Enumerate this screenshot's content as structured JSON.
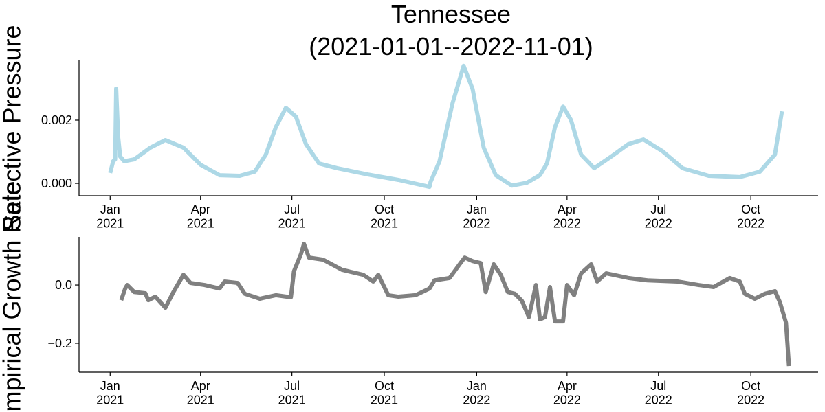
{
  "chart_data": [
    {
      "type": "line",
      "title": "Tennessee",
      "subtitle": "(2021-01-01--2022-11-01)",
      "y_label": "Selective Pressure",
      "x": [
        "2021-01-01",
        "2021-01-04",
        "2021-01-06",
        "2021-01-07",
        "2021-01-09",
        "2021-01-11",
        "2021-01-15",
        "2021-01-25",
        "2021-02-10",
        "2021-02-25",
        "2021-03-15",
        "2021-04-01",
        "2021-04-20",
        "2021-05-10",
        "2021-05-25",
        "2021-06-05",
        "2021-06-15",
        "2021-06-25",
        "2021-07-05",
        "2021-07-15",
        "2021-07-28",
        "2021-08-15",
        "2021-09-15",
        "2021-10-15",
        "2021-11-15",
        "2021-11-16",
        "2021-11-25",
        "2021-12-08",
        "2021-12-19",
        "2021-12-28",
        "2022-01-08",
        "2022-01-20",
        "2022-02-05",
        "2022-02-20",
        "2022-03-05",
        "2022-03-12",
        "2022-03-20",
        "2022-03-28",
        "2022-04-05",
        "2022-04-15",
        "2022-04-28",
        "2022-05-15",
        "2022-06-01",
        "2022-06-16",
        "2022-07-05",
        "2022-07-25",
        "2022-08-20",
        "2022-09-20",
        "2022-10-10",
        "2022-10-25",
        "2022-11-01"
      ],
      "series": [
        {
          "color": "#add8e6",
          "values": [
            0.00033,
            0.0007,
            0.00076,
            0.003,
            0.00146,
            0.00085,
            0.0007,
            0.00076,
            0.00113,
            0.00137,
            0.00113,
            0.00059,
            0.00026,
            0.00024,
            0.00037,
            0.00091,
            0.00178,
            0.00239,
            0.00211,
            0.00124,
            0.00063,
            0.00048,
            0.00028,
            0.00011,
            -0.00011,
            4e-05,
            0.0007,
            0.00254,
            0.00372,
            0.00298,
            0.00113,
            0.00026,
            -7e-05,
            2e-05,
            0.00026,
            0.00063,
            0.00178,
            0.00243,
            0.002,
            0.00091,
            0.00048,
            0.00085,
            0.00124,
            0.00139,
            0.00102,
            0.00048,
            0.00024,
            0.0002,
            0.00037,
            0.00091,
            0.00228
          ]
        }
      ],
      "xlim": [
        "2020-12-01",
        "2022-12-07"
      ],
      "xticks": [
        {
          "value": "2021-01-01",
          "label": "Jan\n2021"
        },
        {
          "value": "2021-04-01",
          "label": "Apr\n2021"
        },
        {
          "value": "2021-07-01",
          "label": "Jul\n2021"
        },
        {
          "value": "2021-10-01",
          "label": "Oct\n2021"
        },
        {
          "value": "2022-01-01",
          "label": "Jan\n2022"
        },
        {
          "value": "2022-04-01",
          "label": "Apr\n2022"
        },
        {
          "value": "2022-07-01",
          "label": "Jul\n2022"
        },
        {
          "value": "2022-10-01",
          "label": "Oct\n2022"
        }
      ],
      "ylim": [
        -0.00039,
        0.00389
      ],
      "yticks": [
        {
          "value": 0,
          "label": "0.000"
        },
        {
          "value": 0.002,
          "label": "0.002"
        }
      ]
    },
    {
      "type": "line",
      "y_label": "Empirical Growth Rate",
      "x": [
        "2021-01-12",
        "2021-01-16",
        "2021-01-18",
        "2021-01-25",
        "2021-02-05",
        "2021-02-08",
        "2021-02-15",
        "2021-02-25",
        "2021-03-05",
        "2021-03-15",
        "2021-03-22",
        "2021-04-05",
        "2021-04-20",
        "2021-04-25",
        "2021-05-08",
        "2021-05-15",
        "2021-05-30",
        "2021-06-15",
        "2021-06-30",
        "2021-07-03",
        "2021-07-10",
        "2021-07-13",
        "2021-07-18",
        "2021-08-01",
        "2021-08-20",
        "2021-09-10",
        "2021-09-20",
        "2021-09-25",
        "2021-10-05",
        "2021-10-15",
        "2021-11-01",
        "2021-11-15",
        "2021-11-20",
        "2021-12-05",
        "2021-12-15",
        "2021-12-20",
        "2021-12-28",
        "2022-01-05",
        "2022-01-10",
        "2022-01-18",
        "2022-01-25",
        "2022-02-01",
        "2022-02-08",
        "2022-02-15",
        "2022-02-22",
        "2022-03-01",
        "2022-03-05",
        "2022-03-10",
        "2022-03-15",
        "2022-03-20",
        "2022-03-28",
        "2022-04-01",
        "2022-04-08",
        "2022-04-15",
        "2022-04-25",
        "2022-05-01",
        "2022-05-10",
        "2022-06-01",
        "2022-06-20",
        "2022-07-20",
        "2022-08-10",
        "2022-08-25",
        "2022-09-10",
        "2022-09-20",
        "2022-09-25",
        "2022-10-05",
        "2022-10-15",
        "2022-10-25",
        "2022-10-30",
        "2022-11-05",
        "2022-11-08"
      ],
      "series": [
        {
          "color": "#808080",
          "values": [
            -0.052,
            -0.012,
            0,
            -0.024,
            -0.028,
            -0.052,
            -0.04,
            -0.078,
            -0.024,
            0.035,
            0.007,
            0,
            -0.012,
            0.012,
            0.007,
            -0.03,
            -0.047,
            -0.035,
            -0.042,
            0.047,
            0.106,
            0.141,
            0.094,
            0.087,
            0.052,
            0.035,
            0.012,
            0.035,
            -0.035,
            -0.04,
            -0.035,
            -0.012,
            0.016,
            0.024,
            0.071,
            0.094,
            0.082,
            0.075,
            -0.024,
            0.071,
            0.035,
            -0.024,
            -0.03,
            -0.054,
            -0.11,
            0,
            -0.118,
            -0.11,
            -0.007,
            -0.125,
            -0.125,
            0,
            -0.035,
            0.04,
            0.071,
            0.012,
            0.04,
            0.024,
            0.016,
            0.012,
            0,
            -0.007,
            0.024,
            0.012,
            -0.03,
            -0.047,
            -0.03,
            -0.021,
            -0.059,
            -0.129,
            -0.278
          ]
        }
      ],
      "xlim": [
        "2020-12-01",
        "2022-12-07"
      ],
      "xticks": [
        {
          "value": "2021-01-01",
          "label": "Jan\n2021"
        },
        {
          "value": "2021-04-01",
          "label": "Apr\n2021"
        },
        {
          "value": "2021-07-01",
          "label": "Jul\n2021"
        },
        {
          "value": "2021-10-01",
          "label": "Oct\n2021"
        },
        {
          "value": "2022-01-01",
          "label": "Jan\n2022"
        },
        {
          "value": "2022-04-01",
          "label": "Apr\n2022"
        },
        {
          "value": "2022-07-01",
          "label": "Jul\n2022"
        },
        {
          "value": "2022-10-01",
          "label": "Oct\n2022"
        }
      ],
      "ylim": [
        -0.299,
        0.165
      ],
      "yticks": [
        {
          "value": 0,
          "label": "0.0"
        },
        {
          "value": -0.2,
          "label": "−0.2"
        }
      ]
    }
  ]
}
